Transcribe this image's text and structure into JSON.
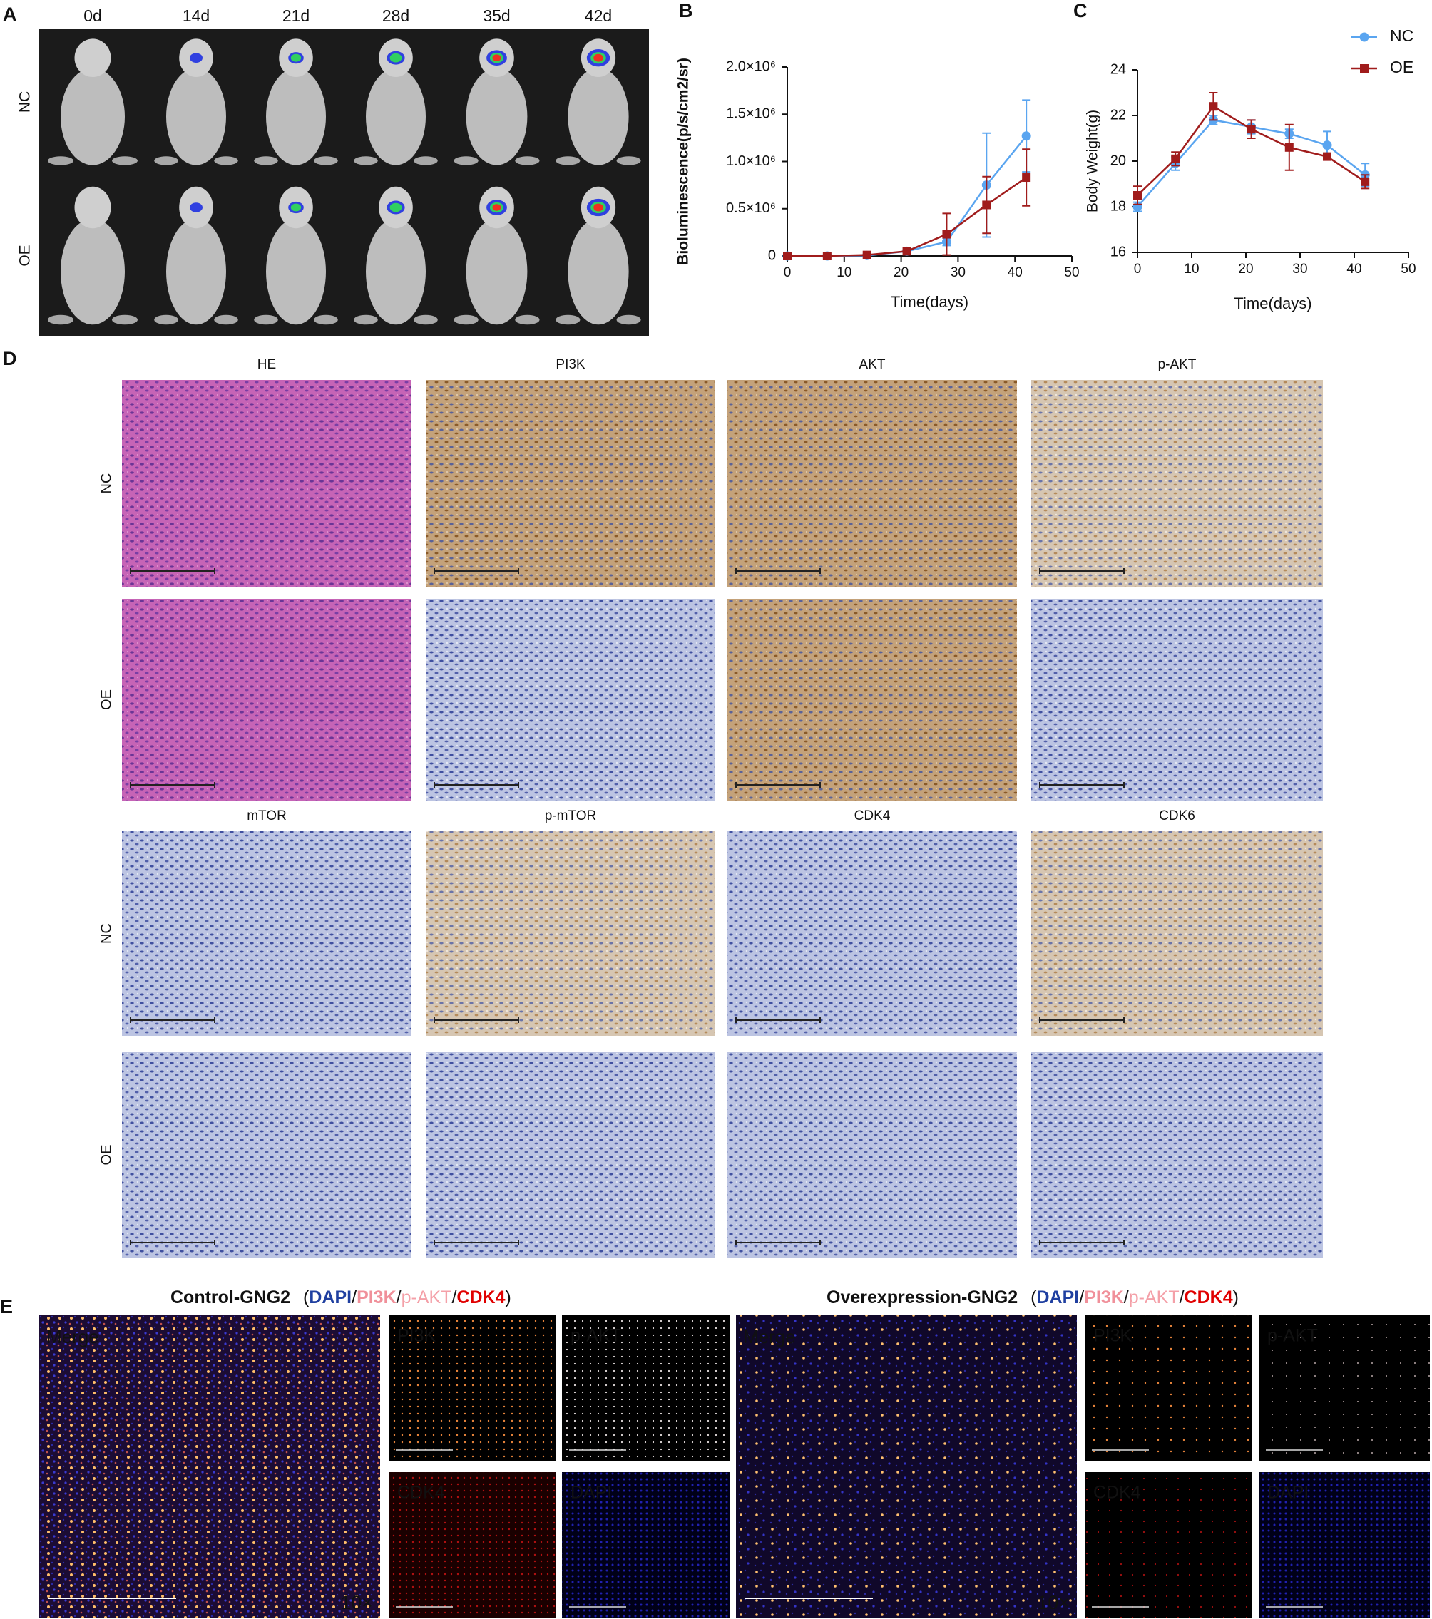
{
  "chart_data": [
    {
      "type": "line",
      "ylabel": "Bioluminescence(p/s/cm2/sr)",
      "xlabel": "Time(days)",
      "x": [
        0,
        7,
        14,
        21,
        28,
        35,
        42
      ],
      "xlim": [
        0,
        50
      ],
      "xticks": [
        0,
        10,
        20,
        30,
        40,
        50
      ],
      "ylim": [
        0,
        2000000
      ],
      "yticks": [
        0,
        {
          "value": 500000,
          "label": "0.5×10⁶"
        },
        {
          "value": 1000000,
          "label": "1.0×10⁶"
        },
        {
          "value": 1500000,
          "label": "1.5×10⁶"
        },
        {
          "value": 2000000,
          "label": "2.0×10⁶"
        }
      ],
      "series": [
        {
          "color": "#5aa5f0",
          "marker": "circle",
          "values": [
            0,
            0,
            5000,
            50000,
            150000,
            750000,
            1270000
          ],
          "errors": [
            0,
            0,
            3000,
            10000,
            40000,
            550000,
            380000
          ]
        },
        {
          "color": "#a01c1c",
          "marker": "square",
          "values": [
            0,
            0,
            10000,
            50000,
            230000,
            540000,
            830000
          ],
          "errors": [
            0,
            0,
            3000,
            10000,
            220000,
            300000,
            300000
          ]
        }
      ]
    },
    {
      "type": "line",
      "ylabel": "Body Weight(g)",
      "xlabel": "Time(days)",
      "x": [
        0,
        7,
        14,
        21,
        28,
        35,
        42
      ],
      "xlim": [
        0,
        50
      ],
      "xticks": [
        0,
        10,
        20,
        30,
        40,
        50
      ],
      "ylim": [
        16,
        24
      ],
      "yticks": [
        16,
        18,
        20,
        22,
        24
      ],
      "legend": "upper right",
      "series": [
        {
          "name": "NC",
          "color": "#5aa5f0",
          "marker": "circle",
          "values": [
            18.0,
            19.9,
            21.8,
            21.5,
            21.2,
            20.7,
            19.4
          ],
          "errors": [
            0.2,
            0.3,
            0.2,
            0.3,
            0.2,
            0.6,
            0.5
          ]
        },
        {
          "name": "OE",
          "color": "#a01c1c",
          "marker": "square",
          "values": [
            18.5,
            20.1,
            22.4,
            21.4,
            20.6,
            20.2,
            19.1
          ],
          "errors": [
            0.4,
            0.3,
            0.6,
            0.4,
            1.0,
            0.1,
            0.3
          ]
        }
      ]
    }
  ],
  "figure": {
    "panel_a": {
      "label": "A",
      "timepoints": [
        "0d",
        "14d",
        "21d",
        "28d",
        "35d",
        "42d"
      ],
      "rows": [
        "NC",
        "OE"
      ]
    },
    "panel_b": {
      "label": "B"
    },
    "panel_c": {
      "label": "C"
    },
    "panel_d": {
      "label": "D",
      "row_labels": [
        "NC",
        "OE",
        "NC",
        "OE"
      ],
      "stains": [
        "HE",
        "PI3K",
        "AKT",
        "p-AKT",
        "mTOR",
        "p-mTOR",
        "CDK4",
        "CDK6"
      ]
    },
    "panel_e": {
      "label": "E",
      "groups": [
        {
          "title": "Control-GNG2",
          "merge_label": "Merge",
          "magnification": "10×"
        },
        {
          "title": "Overexpression-GNG2",
          "merge_label": "Merge",
          "magnification": "10×"
        }
      ],
      "legend": [
        {
          "text": "(",
          "color": "#111111",
          "bold": false
        },
        {
          "text": "DAPI",
          "color": "#1f3fa0",
          "bold": true
        },
        {
          "text": "/",
          "color": "#111111",
          "bold": false
        },
        {
          "text": "PI3K",
          "color": "#f0909a",
          "bold": true
        },
        {
          "text": "/",
          "color": "#111111",
          "bold": false
        },
        {
          "text": "p-AKT",
          "color": "#f4a0a8",
          "bold": false
        },
        {
          "text": "/",
          "color": "#111111",
          "bold": false
        },
        {
          "text": "CDK4",
          "color": "#e00000",
          "bold": true
        },
        {
          "text": ")",
          "color": "#111111",
          "bold": false
        }
      ],
      "tiles": [
        {
          "text": "PI3K",
          "color": "#e8823a"
        },
        {
          "text": "p-AKT",
          "color": "#f0a0b0"
        },
        {
          "text": "CDK4",
          "color": "#e01010"
        },
        {
          "text": "DAPI",
          "color": "#8090d8"
        }
      ]
    }
  }
}
